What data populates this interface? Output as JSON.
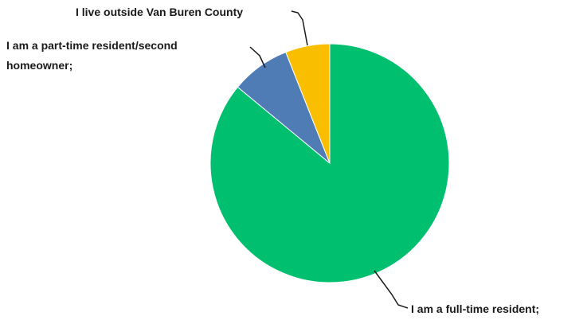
{
  "chart_data": {
    "type": "pie",
    "title": "",
    "start_angle_deg": 0,
    "direction": "clockwise",
    "slices": [
      {
        "label": "I am a full-time resident;",
        "value": 86,
        "color": "#00bf6f"
      },
      {
        "label": "I am a part-time resident/second homeowner;",
        "value": 8,
        "color": "#507cb6"
      },
      {
        "label": "I live outside Van Buren County",
        "value": 6,
        "color": "#f9be00"
      }
    ]
  }
}
